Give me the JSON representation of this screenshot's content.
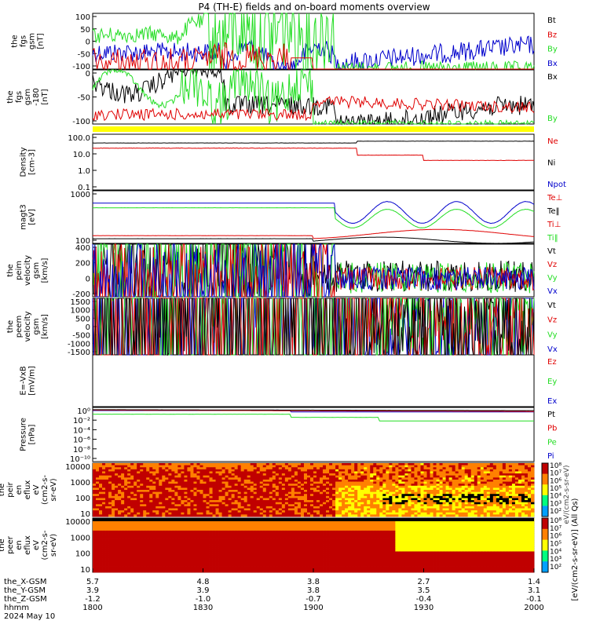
{
  "title": "P4 (TH-E) fields and on-board moments overview",
  "colors": {
    "black": "#000000",
    "red": "#e00000",
    "green": "#22dd22",
    "blue": "#0000cc",
    "yellow": "#ffff00"
  },
  "chart_data": [
    {
      "type": "line",
      "panel": "fgs_gsm",
      "ylabel": [
        "the",
        "fgs",
        "gsm",
        "[nT]"
      ],
      "ylim": [
        -100,
        100
      ],
      "ticks": [
        "100",
        "50",
        "0",
        "-50",
        "-100"
      ],
      "series": [
        {
          "name": "Bt",
          "color": "black"
        },
        {
          "name": "Bz",
          "color": "red"
        },
        {
          "name": "By",
          "color": "green"
        },
        {
          "name": "Bx",
          "color": "blue"
        }
      ]
    },
    {
      "type": "line",
      "panel": "fgs_gsm_m180",
      "ylabel": [
        "the",
        "fgs",
        "gsm",
        "-180",
        "[nT]"
      ],
      "ylim": [
        -120,
        0
      ],
      "ticks": [
        "0",
        "-50",
        "-100"
      ],
      "series": [
        {
          "name": "Bx",
          "color": "black"
        },
        {
          "name": "By",
          "color": "green"
        }
      ]
    },
    {
      "type": "line",
      "panel": "density",
      "ylabel": [
        "Density",
        "[cm-3]"
      ],
      "log": true,
      "ticks": [
        "100.0",
        "10.0",
        "1.0",
        "0.1"
      ],
      "series": [
        {
          "name": "Ne",
          "color": "red"
        },
        {
          "name": "Ni",
          "color": "black"
        },
        {
          "name": "Npot",
          "color": "blue"
        }
      ]
    },
    {
      "type": "line",
      "panel": "temperature",
      "ylabel": [
        "magt3",
        "[eV]"
      ],
      "log": true,
      "ticks": [
        "1000",
        "100"
      ],
      "series": [
        {
          "name": "Te⊥",
          "color": "red"
        },
        {
          "name": "Te‖",
          "color": "black"
        },
        {
          "name": "Ti⊥",
          "color": "red"
        },
        {
          "name": "Ti‖",
          "color": "green"
        }
      ]
    },
    {
      "type": "line",
      "panel": "peim_velocity",
      "ylabel": [
        "the",
        "peim",
        "velocity",
        "gsm",
        "[km/s]"
      ],
      "ylim": [
        -200,
        400
      ],
      "ticks": [
        "400",
        "200",
        "0",
        "-200"
      ],
      "series": [
        {
          "name": "Vt",
          "color": "black"
        },
        {
          "name": "Vz",
          "color": "red"
        },
        {
          "name": "Vy",
          "color": "green"
        },
        {
          "name": "Vx",
          "color": "blue"
        }
      ]
    },
    {
      "type": "line",
      "panel": "peem_velocity",
      "ylabel": [
        "the",
        "peem",
        "velocity",
        "gsm",
        "[km/s]"
      ],
      "ylim": [
        -1500,
        1500
      ],
      "ticks": [
        "1500",
        "1000",
        "500",
        "0",
        "-500",
        "-1000",
        "-1500"
      ],
      "series": [
        {
          "name": "Vt",
          "color": "black"
        },
        {
          "name": "Vz",
          "color": "red"
        },
        {
          "name": "Vy",
          "color": "green"
        },
        {
          "name": "Vx",
          "color": "blue"
        }
      ]
    },
    {
      "type": "line",
      "panel": "efield",
      "ylabel": [
        "E=-VxB",
        "[mV/m]"
      ],
      "series": [
        {
          "name": "Ez",
          "color": "red"
        },
        {
          "name": "Ey",
          "color": "green"
        },
        {
          "name": "Ex",
          "color": "blue"
        }
      ]
    },
    {
      "type": "line",
      "panel": "pressure",
      "ylabel": [
        "Pressure",
        "[nPa]"
      ],
      "log": true,
      "ticks": [
        "10⁰",
        "10⁻²",
        "10⁻⁴",
        "10⁻⁶",
        "10⁻⁸",
        "10⁻¹⁰"
      ],
      "series": [
        {
          "name": "Pt",
          "color": "black"
        },
        {
          "name": "Pb",
          "color": "red"
        },
        {
          "name": "Pe",
          "color": "green"
        },
        {
          "name": "Pi",
          "color": "blue"
        }
      ]
    },
    {
      "type": "heatmap",
      "panel": "peir_en_eflux",
      "ylabel": [
        "the",
        "peir",
        "en",
        "eflux",
        "eV",
        "(cm2-s-",
        "sr-eV)"
      ],
      "ticks": [
        "10000",
        "1000",
        "100",
        "10"
      ],
      "colorbar_ticks": [
        "10⁸",
        "10⁷",
        "10⁶",
        "10⁵",
        "10⁴",
        "10³",
        "10²"
      ]
    },
    {
      "type": "heatmap",
      "panel": "peer_en_eflux",
      "ylabel": [
        "the",
        "peer",
        "en",
        "eflux",
        "eV",
        "(cm2-s-",
        "sr-eV)"
      ],
      "ticks": [
        "10000",
        "1000",
        "100",
        "10"
      ],
      "colorbar_ticks": [
        "10⁸",
        "10⁷",
        "10⁶",
        "10⁵",
        "10⁴",
        "10³",
        "10²"
      ]
    }
  ],
  "colorbar_label": "[eV/(cm2-s-sr-eV)] (All Qs)",
  "colorbar_label2": "eV/(cm2-s-sr-eV)",
  "xaxis": {
    "rows": [
      {
        "label": "the_X-GSM",
        "values": [
          "5.7",
          "4.8",
          "3.8",
          "2.7",
          "1.4"
        ]
      },
      {
        "label": "the_Y-GSM",
        "values": [
          "3.9",
          "3.9",
          "3.8",
          "3.5",
          "3.1"
        ]
      },
      {
        "label": "the_Z-GSM",
        "values": [
          "-1.2",
          "-1.0",
          "-0.7",
          "-0.4",
          "-0.1"
        ]
      },
      {
        "label": "hhmm",
        "values": [
          "1800",
          "1830",
          "1900",
          "1930",
          "2000"
        ]
      }
    ],
    "date": "2024 May 10"
  }
}
